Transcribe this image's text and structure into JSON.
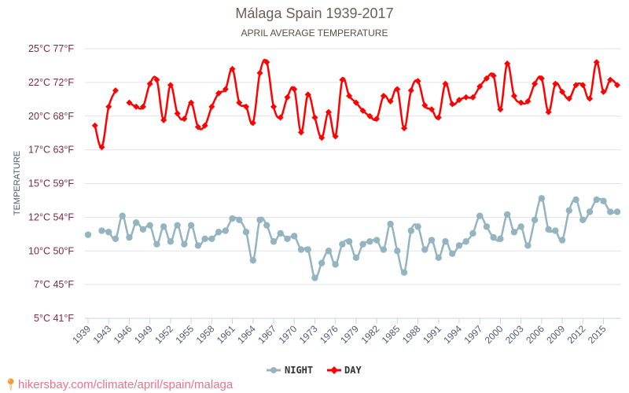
{
  "header": {
    "title": "Málaga Spain 1939-2017",
    "subtitle": "APRIL AVERAGE TEMPERATURE"
  },
  "footer": {
    "pin_icon": "location-pin-icon",
    "text": "hikersbay.com/climate/april/spain/malaga"
  },
  "chart_data": {
    "type": "line",
    "title": "Málaga Spain 1939-2017",
    "subtitle": "APRIL AVERAGE TEMPERATURE",
    "xlabel": "",
    "ylabel": "TEMPERATURE",
    "ylim": [
      5,
      25
    ],
    "yticks": [
      {
        "value": 25,
        "label": "25°C 77°F"
      },
      {
        "value": 22.5,
        "label": "22°C 72°F"
      },
      {
        "value": 20,
        "label": "20°C 68°F"
      },
      {
        "value": 17.5,
        "label": "17°C 63°F"
      },
      {
        "value": 15,
        "label": "15°C 59°F"
      },
      {
        "value": 12.5,
        "label": "12°C 54°F"
      },
      {
        "value": 10,
        "label": "10°C 50°F"
      },
      {
        "value": 7.5,
        "label": "7°C 45°F"
      },
      {
        "value": 5,
        "label": "5°C 41°F"
      }
    ],
    "xtick_every": 3,
    "grid": true,
    "legend_position": "bottom-center",
    "categories": [
      "1939",
      "1941",
      "1942",
      "1943",
      "1944",
      "1945",
      "1946",
      "1947",
      "1948",
      "1949",
      "1950",
      "1951",
      "1952",
      "1953",
      "1954",
      "1955",
      "1956",
      "1957",
      "1958",
      "1959",
      "1960",
      "1961",
      "1962",
      "1963",
      "1964",
      "1965",
      "1966",
      "1967",
      "1968",
      "1969",
      "1970",
      "1971",
      "1972",
      "1973",
      "1974",
      "1975",
      "1976",
      "1977",
      "1978",
      "1979",
      "1980",
      "1981",
      "1982",
      "1983",
      "1984",
      "1985",
      "1986",
      "1987",
      "1988",
      "1989",
      "1990",
      "1991",
      "1992",
      "1993",
      "1994",
      "1995",
      "1996",
      "1997",
      "1998",
      "1999",
      "2000",
      "2001",
      "2002",
      "2003",
      "2004",
      "2005",
      "2006",
      "2007",
      "2008",
      "2009",
      "2010",
      "2011",
      "2012",
      "2013",
      "2014",
      "2015",
      "2016",
      "2017"
    ],
    "series": [
      {
        "name": "NIGHT",
        "color": "#94b4bf",
        "marker": "circle",
        "values": [
          11.2,
          null,
          11.5,
          11.4,
          10.9,
          12.6,
          11.0,
          12.1,
          11.6,
          11.9,
          10.5,
          11.8,
          10.7,
          11.9,
          10.5,
          11.9,
          10.4,
          10.9,
          10.9,
          11.4,
          11.5,
          12.4,
          12.3,
          11.4,
          9.3,
          12.3,
          11.9,
          10.7,
          11.3,
          10.9,
          11.1,
          10.1,
          10.1,
          8.0,
          9.1,
          10.0,
          9.0,
          10.5,
          10.7,
          9.5,
          10.5,
          10.7,
          10.8,
          10.1,
          12.0,
          10.0,
          8.4,
          11.5,
          11.8,
          10.1,
          10.8,
          9.5,
          10.7,
          9.8,
          10.4,
          10.7,
          11.3,
          12.6,
          11.8,
          11.0,
          10.9,
          12.7,
          11.4,
          11.8,
          10.4,
          12.3,
          13.9,
          11.6,
          11.5,
          10.8,
          13.0,
          13.8,
          12.3,
          12.9,
          13.8,
          13.7,
          12.9,
          12.9
        ]
      },
      {
        "name": "DAY",
        "color": "#ff0000",
        "marker": "diamond",
        "values": [
          null,
          19.3,
          17.7,
          20.7,
          21.9,
          null,
          21.0,
          20.7,
          20.7,
          22.4,
          22.7,
          19.7,
          22.3,
          20.2,
          19.8,
          21.0,
          19.2,
          19.3,
          20.7,
          21.7,
          22.0,
          23.5,
          21.0,
          20.7,
          19.5,
          23.2,
          24.0,
          20.7,
          19.9,
          21.4,
          22.0,
          18.8,
          21.6,
          19.9,
          18.4,
          20.3,
          18.5,
          22.7,
          21.5,
          21.0,
          20.4,
          20.0,
          19.8,
          21.5,
          21.1,
          22.0,
          19.1,
          21.9,
          22.6,
          20.8,
          20.5,
          19.9,
          22.4,
          20.9,
          21.2,
          21.4,
          21.4,
          22.2,
          22.8,
          23.0,
          20.5,
          23.9,
          21.5,
          21.0,
          21.1,
          22.4,
          22.8,
          20.3,
          22.4,
          21.8,
          21.3,
          22.3,
          22.3,
          21.3,
          24.0,
          21.8,
          22.7,
          22.3
        ]
      }
    ]
  }
}
